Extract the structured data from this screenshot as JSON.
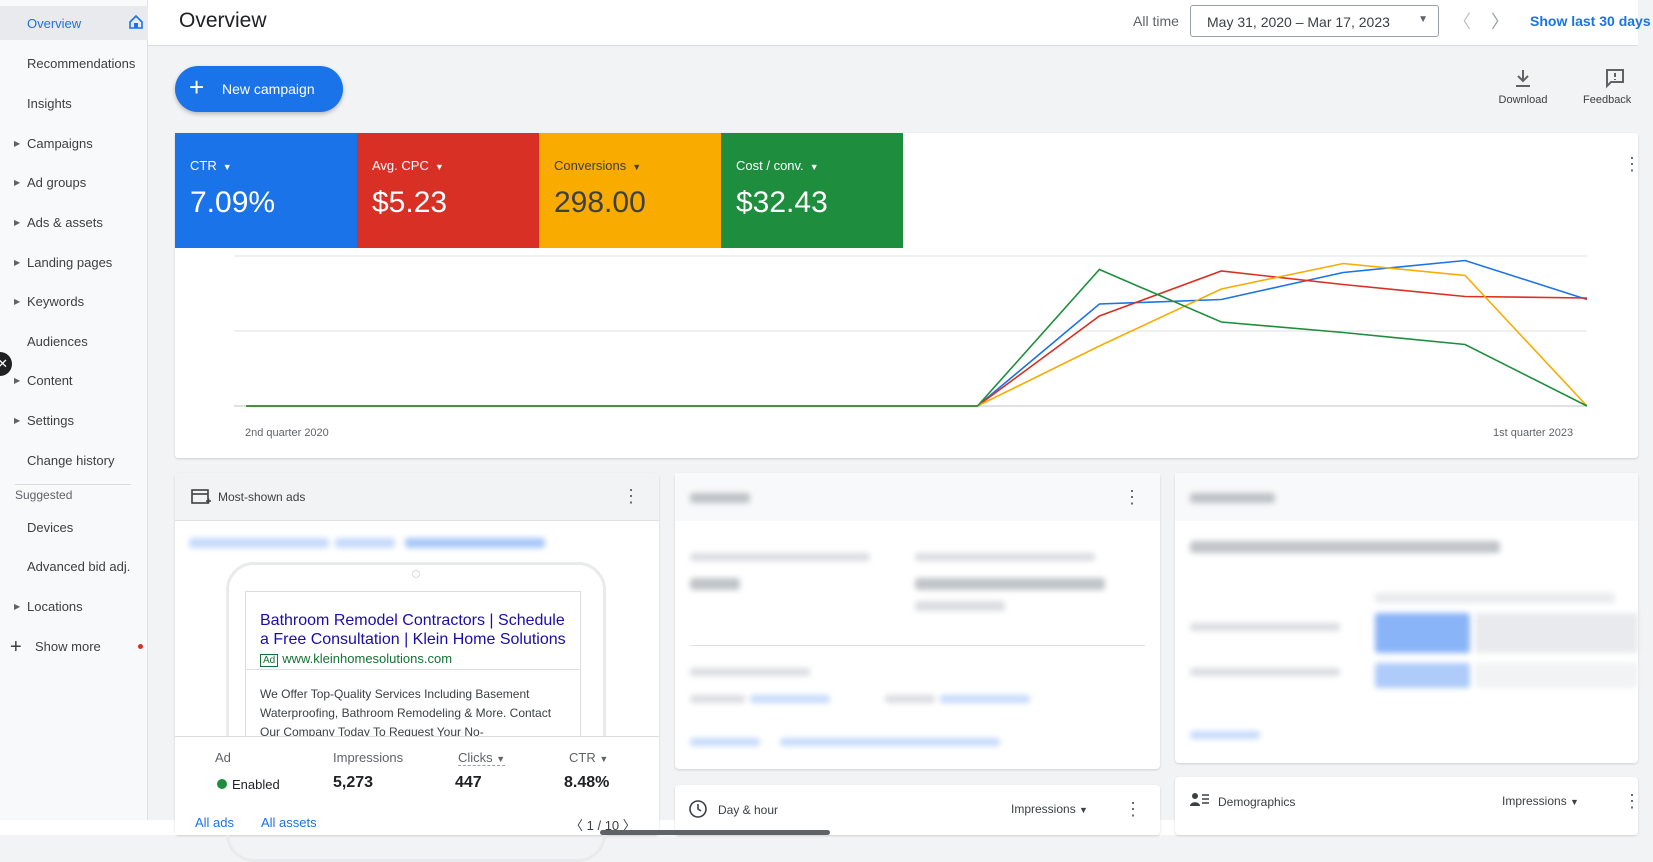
{
  "sidebar": {
    "items": [
      {
        "label": "Overview",
        "caret": false
      },
      {
        "label": "Recommendations",
        "caret": false
      },
      {
        "label": "Insights",
        "caret": false
      },
      {
        "label": "Campaigns",
        "caret": true
      },
      {
        "label": "Ad groups",
        "caret": true
      },
      {
        "label": "Ads & assets",
        "caret": true
      },
      {
        "label": "Landing pages",
        "caret": true
      },
      {
        "label": "Keywords",
        "caret": true
      },
      {
        "label": "Audiences",
        "caret": false
      },
      {
        "label": "Content",
        "caret": true
      },
      {
        "label": "Settings",
        "caret": true
      },
      {
        "label": "Change history",
        "caret": false
      }
    ],
    "suggested_label": "Suggested",
    "suggested_items": [
      {
        "label": "Devices",
        "caret": false
      },
      {
        "label": "Advanced bid adj.",
        "caret": false
      },
      {
        "label": "Locations",
        "caret": true
      }
    ],
    "show_more": "Show more"
  },
  "header": {
    "title": "Overview",
    "all_time": "All time",
    "date_range": "May 31, 2020 – Mar 17, 2023",
    "show_last": "Show last 30 days"
  },
  "toolbar": {
    "new_campaign": "New campaign",
    "download": "Download",
    "feedback": "Feedback"
  },
  "metrics": [
    {
      "label": "CTR",
      "value": "7.09%",
      "color": "#1a73e8"
    },
    {
      "label": "Avg. CPC",
      "value": "$5.23",
      "color": "#d93025"
    },
    {
      "label": "Conversions",
      "value": "298.00",
      "color": "#f9ab00"
    },
    {
      "label": "Cost / conv.",
      "value": "$32.43",
      "color": "#1e8e3e"
    }
  ],
  "chart_data": {
    "type": "line",
    "x": [
      "2nd quarter 2020",
      "",
      "",
      "",
      "",
      "",
      "",
      "",
      "",
      "",
      "",
      "1st quarter 2023"
    ],
    "x_tick_labels": [
      "2nd quarter 2020",
      "1st quarter 2023"
    ],
    "series": [
      {
        "color": "#1a73e8",
        "values": [
          0,
          0,
          0,
          0,
          0,
          0,
          0,
          0.68,
          0.71,
          0.89,
          0.97,
          0.71
        ]
      },
      {
        "color": "#d93025",
        "values": [
          0,
          0,
          0,
          0,
          0,
          0,
          0,
          0.6,
          0.9,
          0.81,
          0.73,
          0.72
        ]
      },
      {
        "color": "#f9ab00",
        "values": [
          0,
          0,
          0,
          0,
          0,
          0,
          0,
          0.4,
          0.78,
          0.95,
          0.87,
          0
        ]
      },
      {
        "color": "#1e8e3e",
        "values": [
          0,
          0,
          0,
          0,
          0,
          0,
          0,
          0.91,
          0.56,
          0.49,
          0.41,
          0
        ]
      }
    ],
    "ylim": [
      0,
      1
    ],
    "grid": true
  },
  "ads_card": {
    "title": "Most-shown ads",
    "headline": "Bathroom Remodel Contractors | Schedule a Free Consultation | Klein Home Solutions",
    "ad_tag": "Ad",
    "display_url": "www.kleinhomesolutions.com",
    "description": "We Offer Top-Quality Services Including Basement Waterproofing, Bathroom Remodeling & More. Contact Our Company Today To Request Your No-",
    "columns": [
      "Ad",
      "Impressions",
      "Clicks",
      "CTR"
    ],
    "status": "Enabled",
    "impressions": "5,273",
    "clicks": "447",
    "ctr": "8.48%",
    "all_ads": "All ads",
    "all_assets": "All assets",
    "pager": "1 / 10"
  },
  "day_hour_card": {
    "title": "Day & hour",
    "metric": "Impressions"
  },
  "demographics_card": {
    "title": "Demographics",
    "metric": "Impressions"
  }
}
